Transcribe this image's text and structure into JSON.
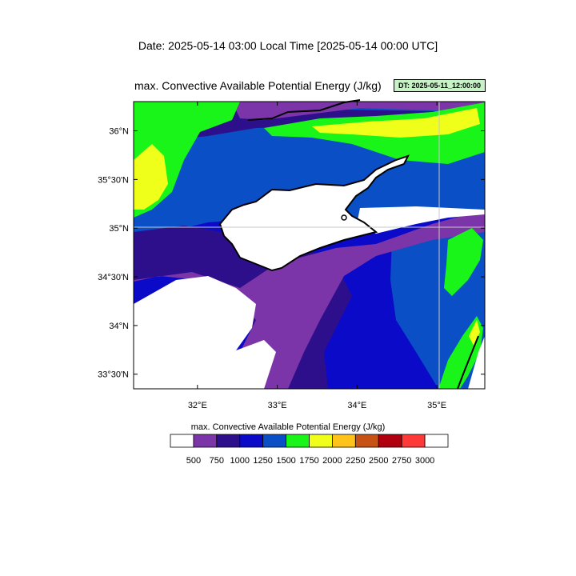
{
  "header": {
    "date_line": "Date: 2025-05-14  03:00 Local Time [2025-05-14  00:00 UTC]"
  },
  "plot": {
    "title": "max. Convective Available Potential Energy   (J/kg)",
    "dt_badge": "DT: 2025-05-11_12:00:00"
  },
  "map": {
    "lat_labels": [
      "36°N",
      "35°30'N",
      "35°N",
      "34°30'N",
      "34°N",
      "33°30'N"
    ],
    "lon_labels": [
      "32°E",
      "33°E",
      "34°E",
      "35°E"
    ],
    "lat_values": [
      36,
      35.5,
      35,
      34.5,
      34,
      33.5
    ],
    "lon_values": [
      32,
      33,
      34,
      35
    ],
    "lat_range": [
      33.35,
      36.3
    ],
    "lon_range": [
      31.2,
      35.6
    ]
  },
  "colorbar": {
    "title": "max. Convective Available Potential Energy  (J/kg)",
    "labels": [
      "500",
      "750",
      "1000",
      "1250",
      "1500",
      "1750",
      "2000",
      "2250",
      "2500",
      "2750",
      "3000"
    ],
    "colors": [
      "#ffffff",
      "#7b35a8",
      "#2d0f8c",
      "#0a0ac8",
      "#0a4fc6",
      "#19f519",
      "#f0ff19",
      "#ffc31a",
      "#c65215",
      "#b0000f",
      "#ff3838",
      "#ffffff"
    ]
  },
  "field_colors": {
    "below_500": "#ffffff",
    "c500_750": "#7b35a8",
    "c750_1000": "#2d0f8c",
    "c1000_1250": "#0a0ac8",
    "c1250_1500": "#0a4fc6",
    "c1500_1750": "#19f519",
    "c1750_2000": "#f0ff19",
    "coastline": "#000000"
  }
}
